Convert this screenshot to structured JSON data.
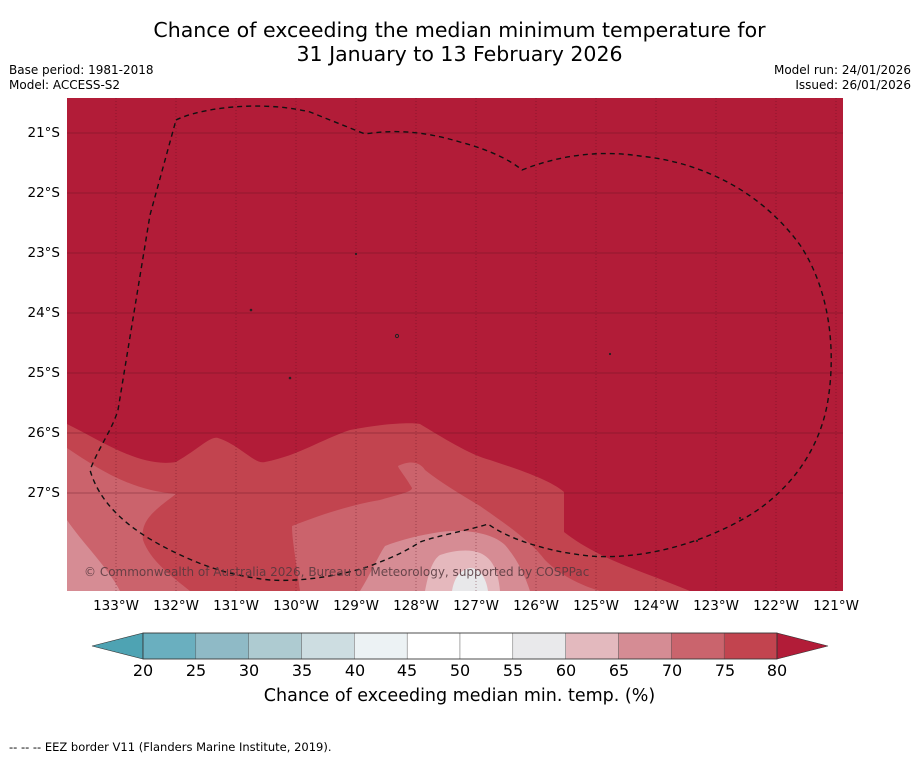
{
  "title": {
    "line1": "Chance of exceeding the median minimum temperature for",
    "line2": "31 January to 13 February 2026"
  },
  "meta": {
    "base_period": "Base period: 1981-2018",
    "model": "Model: ACCESS-S2",
    "model_run": "Model run: 24/01/2026",
    "issued": "Issued: 26/01/2026"
  },
  "map": {
    "lat_ticks": [
      "21°S",
      "22°S",
      "23°S",
      "24°S",
      "25°S",
      "26°S",
      "27°S"
    ],
    "lon_ticks": [
      "133°W",
      "132°W",
      "131°W",
      "130°W",
      "129°W",
      "128°W",
      "127°W",
      "126°W",
      "125°W",
      "124°W",
      "123°W",
      "122°W",
      "121°W"
    ],
    "copyright": "© Commonwealth of Australia 2026, Bureau of Meteorology, supported by COSPPac",
    "colors": {
      "c80plus": "#b21c38",
      "c75": "#c2444f",
      "c70": "#cb636c",
      "c65": "#d68c94",
      "c60": "#e5b8bd",
      "c55": "#e8e8ea",
      "c50": "#ffffff"
    }
  },
  "colorbar": {
    "labels": [
      "20",
      "25",
      "30",
      "35",
      "40",
      "45",
      "50",
      "55",
      "60",
      "65",
      "70",
      "75",
      "80"
    ],
    "colors": [
      "#6aafbf",
      "#8fbac6",
      "#aecbd1",
      "#cddde1",
      "#ecf2f4",
      "#ffffff",
      "#ffffff",
      "#e9e9eb",
      "#e3b9be",
      "#d58c94",
      "#ca646d",
      "#c2444f"
    ],
    "under_color": "#4ea3b3",
    "over_color": "#b21c38",
    "title": "Chance of exceeding median min. temp. (%)"
  },
  "footer": "--  --  -- EEZ border V11 (Flanders Marine Institute, 2019)."
}
